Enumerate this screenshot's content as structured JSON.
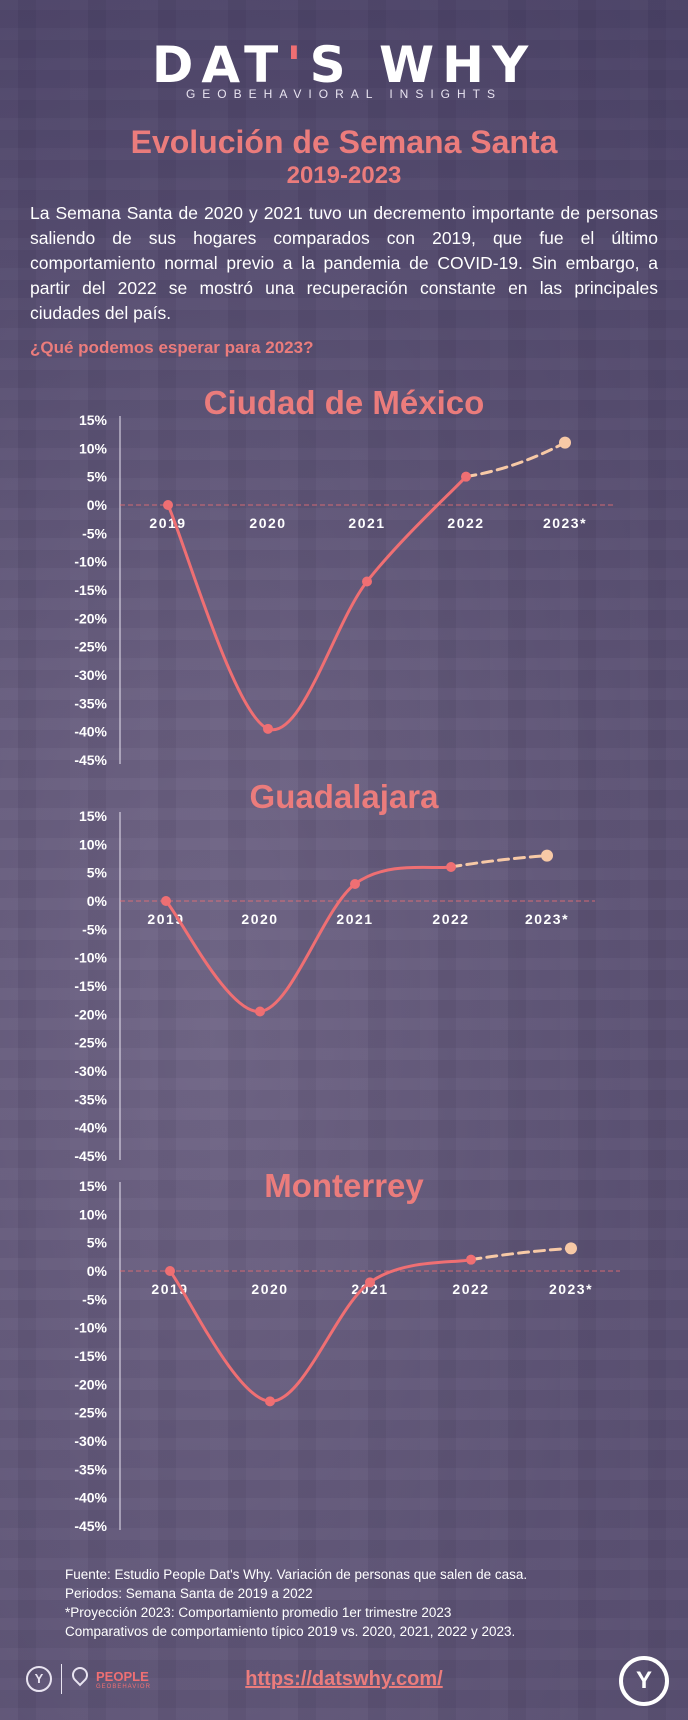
{
  "header": {
    "logo_part1": "DAT",
    "logo_apostrophe": "'",
    "logo_part2": "S WHY",
    "tagline": "GEOBEHAVIORAL INSIGHTS"
  },
  "title": "Evolución de Semana Santa",
  "subtitle": "2019-2023",
  "intro": "La Semana Santa de 2020 y 2021 tuvo un decremento importante de personas saliendo de sus hogares comparados con 2019, que fue el último comportamiento normal previo a la pandemia de COVID-19. Sin embargo, a partir del 2022 se mostró una recuperación constante en las principales ciudades del país.",
  "question": "¿Qué podemos esperar para 2023?",
  "colors": {
    "line": "#ef6f73",
    "projection": "#f7c9a6",
    "accent_text": "#eb7c7c",
    "background": "#5f5577"
  },
  "chart_data": [
    {
      "type": "line",
      "title": "Ciudad de México",
      "categories": [
        "2019",
        "2020",
        "2021",
        "2022",
        "2023*"
      ],
      "values": [
        0,
        -39.5,
        -13.5,
        5,
        11
      ],
      "projection_from_index": 3,
      "y_ticks": [
        "15%",
        "10%",
        "5%",
        "0%",
        "-5%",
        "-10%",
        "-15%",
        "-20%",
        "-25%",
        "-30%",
        "-35%",
        "-40%",
        "-45%"
      ],
      "ylim": [
        -45,
        15
      ]
    },
    {
      "type": "line",
      "title": "Guadalajara",
      "categories": [
        "2019",
        "2020",
        "2021",
        "2022",
        "2023*"
      ],
      "values": [
        0,
        -19.5,
        3,
        6,
        8
      ],
      "projection_from_index": 3,
      "y_ticks": [
        "15%",
        "10%",
        "5%",
        "0%",
        "-5%",
        "-10%",
        "-15%",
        "-20%",
        "-25%",
        "-30%",
        "-35%",
        "-40%",
        "-45%"
      ],
      "ylim": [
        -45,
        15
      ]
    },
    {
      "type": "line",
      "title": "Monterrey",
      "categories": [
        "2019",
        "2020",
        "2021",
        "2022",
        "2023*"
      ],
      "values": [
        0,
        -23,
        -2,
        2,
        4
      ],
      "projection_from_index": 3,
      "y_ticks": [
        "15%",
        "10%",
        "5%",
        "0%",
        "-5%",
        "-10%",
        "-15%",
        "-20%",
        "-25%",
        "-30%",
        "-35%",
        "-40%",
        "-45%"
      ],
      "ylim": [
        -45,
        15
      ]
    }
  ],
  "notes": [
    "Fuente: Estudio People Dat's Why. Variación de personas que salen de casa.",
    "Periodos: Semana Santa de 2019 a 2022",
    "*Proyección 2023: Comportamiento promedio 1er trimestre 2023",
    "Comparativos de comportamiento típico 2019 vs. 2020, 2021, 2022 y 2023."
  ],
  "footer": {
    "url": "https://datswhy.com/",
    "brand": "PEOPLE",
    "brand_sub": "GEOBEHAVIOR"
  }
}
